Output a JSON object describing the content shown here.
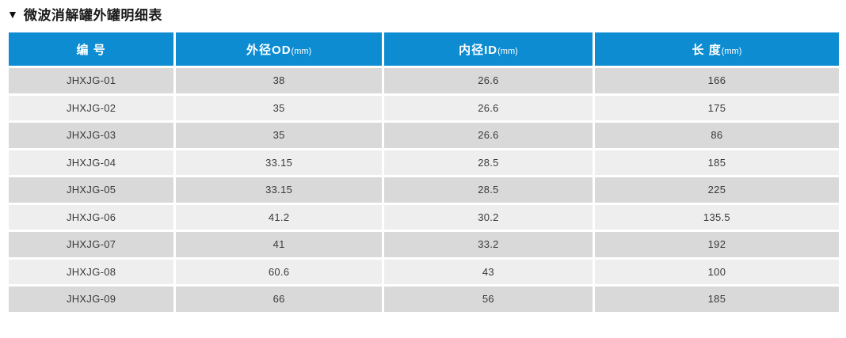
{
  "title": {
    "marker": "▼",
    "text": "微波消解罐外罐明细表"
  },
  "table": {
    "columns": [
      {
        "label": "编 号",
        "unit": ""
      },
      {
        "label": "外径OD",
        "unit": "(mm)"
      },
      {
        "label": "内径ID",
        "unit": "(mm)"
      },
      {
        "label": "长 度",
        "unit": "(mm)"
      }
    ],
    "rows": [
      [
        "JHXJG-01",
        "38",
        "26.6",
        "166"
      ],
      [
        "JHXJG-02",
        "35",
        "26.6",
        "175"
      ],
      [
        "JHXJG-03",
        "35",
        "26.6",
        "86"
      ],
      [
        "JHXJG-04",
        "33.15",
        "28.5",
        "185"
      ],
      [
        "JHXJG-05",
        "33.15",
        "28.5",
        "225"
      ],
      [
        "JHXJG-06",
        "41.2",
        "30.2",
        "135.5"
      ],
      [
        "JHXJG-07",
        "41",
        "33.2",
        "192"
      ],
      [
        "JHXJG-08",
        "60.6",
        "43",
        "100"
      ],
      [
        "JHXJG-09",
        "66",
        "56",
        "185"
      ]
    ]
  },
  "colors": {
    "header_bg": "#0d8cd2",
    "row_dark": "#d9d9da",
    "row_light": "#eeeeef",
    "divider": "#ffffff",
    "title_color": "#1a1a1a",
    "cell_text": "#3a3a3a"
  }
}
